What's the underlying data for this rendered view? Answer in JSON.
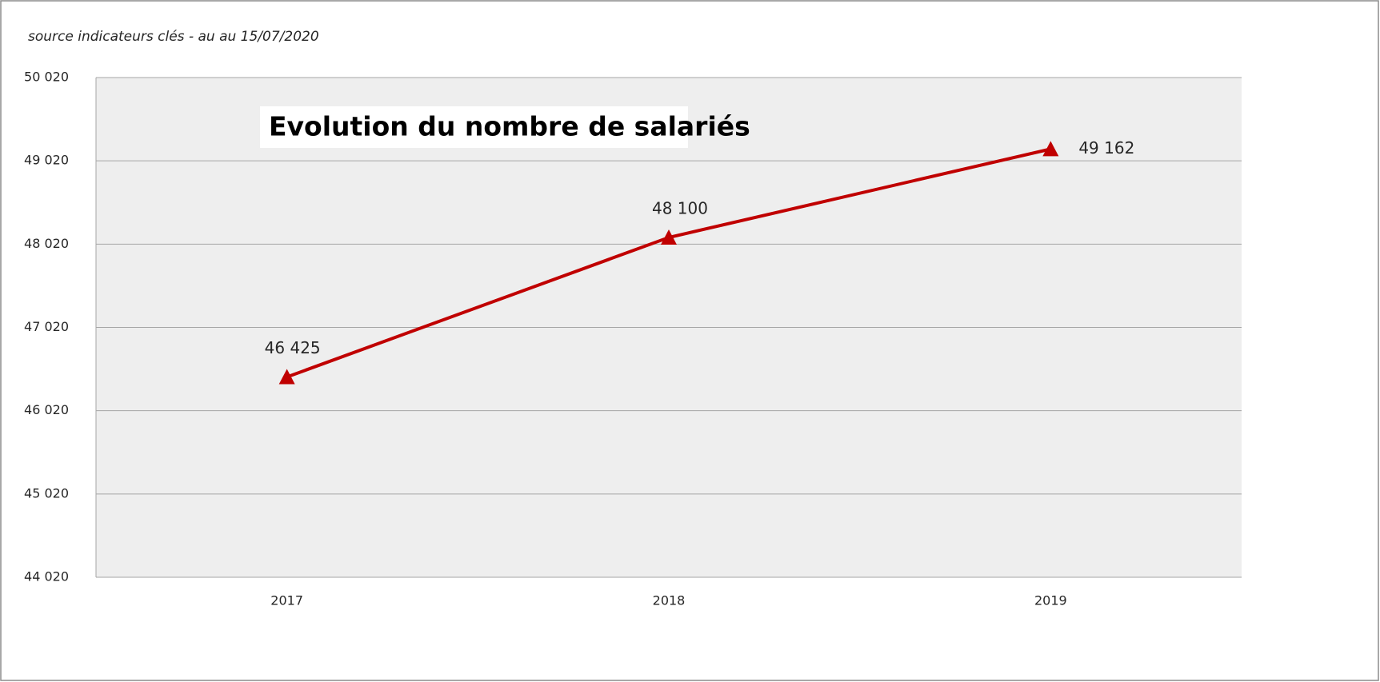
{
  "chart_data": {
    "type": "line",
    "title": "Evolution du nombre de salariés",
    "subtitle": "source indicateurs clés  - au au 15/07/2020",
    "categories": [
      "2017",
      "2018",
      "2019"
    ],
    "values": [
      46425,
      48100,
      49162
    ],
    "value_labels": [
      "46 425",
      "48 100",
      "49 162"
    ],
    "color": "#c00000",
    "marker": "triangle",
    "ylim": [
      44020,
      50020
    ],
    "yticks": [
      {
        "value": 44020,
        "label": "44 020"
      },
      {
        "value": 45020,
        "label": "45 020"
      },
      {
        "value": 46020,
        "label": "46 020"
      },
      {
        "value": 47020,
        "label": "47 020"
      },
      {
        "value": 48020,
        "label": "48 020"
      },
      {
        "value": 49020,
        "label": "49 020"
      },
      {
        "value": 50020,
        "label": "50 020"
      }
    ],
    "grid": true
  }
}
